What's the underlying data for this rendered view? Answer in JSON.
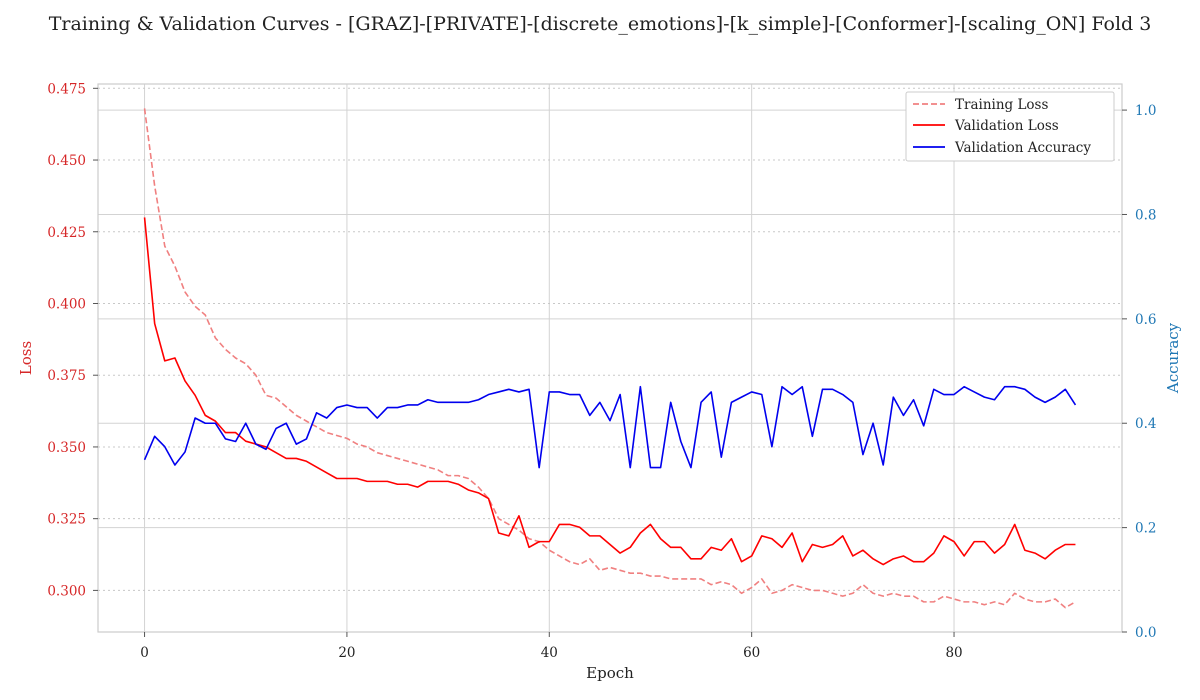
{
  "chart_data": {
    "type": "line",
    "title": "Training & Validation Curves - [GRAZ]-[PRIVATE]-[discrete_emotions]-[k_simple]-[Conformer]-[scaling_ON] Fold 3",
    "xlabel": "Epoch",
    "ylabel": "Loss",
    "y2label": "Accuracy",
    "xlim": [
      -4.6,
      96.6
    ],
    "ylim": [
      0.2855,
      0.4765
    ],
    "y2lim": [
      0,
      1.05
    ],
    "xticks": [
      0,
      20,
      40,
      60,
      80
    ],
    "yticks": [
      0.3,
      0.325,
      0.35,
      0.375,
      0.4,
      0.425,
      0.45,
      0.475
    ],
    "y2ticks": [
      0.0,
      0.2,
      0.4,
      0.6,
      0.8,
      1.0
    ],
    "grid": true,
    "legend_position": "top-right",
    "colors": {
      "training_loss": "#f08080",
      "validation_loss": "#ff0000",
      "validation_accuracy": "#0000ee",
      "left_axis": "#d62728",
      "right_axis": "#1f77b4"
    },
    "series": [
      {
        "name": "Training Loss",
        "axis": "left",
        "style": "dashed",
        "color": "#f08080",
        "values": [
          0.468,
          0.441,
          0.42,
          0.413,
          0.404,
          0.399,
          0.396,
          0.388,
          0.384,
          0.381,
          0.379,
          0.375,
          0.368,
          0.367,
          0.364,
          0.361,
          0.359,
          0.357,
          0.355,
          0.354,
          0.353,
          0.351,
          0.35,
          0.348,
          0.347,
          0.346,
          0.345,
          0.344,
          0.343,
          0.342,
          0.34,
          0.34,
          0.339,
          0.336,
          0.332,
          0.325,
          0.323,
          0.321,
          0.318,
          0.317,
          0.314,
          0.312,
          0.31,
          0.309,
          0.311,
          0.307,
          0.308,
          0.307,
          0.306,
          0.306,
          0.305,
          0.305,
          0.304,
          0.304,
          0.304,
          0.304,
          0.302,
          0.303,
          0.302,
          0.299,
          0.301,
          0.304,
          0.299,
          0.3,
          0.302,
          0.301,
          0.3,
          0.3,
          0.299,
          0.298,
          0.299,
          0.302,
          0.299,
          0.298,
          0.299,
          0.298,
          0.298,
          0.296,
          0.296,
          0.298,
          0.297,
          0.296,
          0.296,
          0.295,
          0.296,
          0.295,
          0.299,
          0.297,
          0.296,
          0.296,
          0.297,
          0.294,
          0.296
        ]
      },
      {
        "name": "Validation Loss",
        "axis": "left",
        "style": "solid",
        "color": "#ff0000",
        "values": [
          0.43,
          0.393,
          0.38,
          0.381,
          0.373,
          0.368,
          0.361,
          0.359,
          0.355,
          0.355,
          0.352,
          0.351,
          0.35,
          0.348,
          0.346,
          0.346,
          0.345,
          0.343,
          0.341,
          0.339,
          0.339,
          0.339,
          0.338,
          0.338,
          0.338,
          0.337,
          0.337,
          0.336,
          0.338,
          0.338,
          0.338,
          0.337,
          0.335,
          0.334,
          0.332,
          0.32,
          0.319,
          0.326,
          0.315,
          0.317,
          0.317,
          0.323,
          0.323,
          0.322,
          0.319,
          0.319,
          0.316,
          0.313,
          0.315,
          0.32,
          0.323,
          0.318,
          0.315,
          0.315,
          0.311,
          0.311,
          0.315,
          0.314,
          0.318,
          0.31,
          0.312,
          0.319,
          0.318,
          0.315,
          0.32,
          0.31,
          0.316,
          0.315,
          0.316,
          0.319,
          0.312,
          0.314,
          0.311,
          0.309,
          0.311,
          0.312,
          0.31,
          0.31,
          0.313,
          0.319,
          0.317,
          0.312,
          0.317,
          0.317,
          0.313,
          0.316,
          0.323,
          0.314,
          0.313,
          0.311,
          0.314,
          0.316,
          0.316
        ]
      },
      {
        "name": "Validation Accuracy",
        "axis": "right",
        "style": "solid",
        "color": "#0000ee",
        "values": [
          0.33,
          0.375,
          0.355,
          0.32,
          0.345,
          0.41,
          0.4,
          0.4,
          0.37,
          0.365,
          0.4,
          0.36,
          0.35,
          0.39,
          0.4,
          0.36,
          0.37,
          0.42,
          0.41,
          0.43,
          0.435,
          0.43,
          0.43,
          0.41,
          0.43,
          0.43,
          0.435,
          0.435,
          0.445,
          0.44,
          0.44,
          0.44,
          0.44,
          0.445,
          0.455,
          0.46,
          0.465,
          0.46,
          0.465,
          0.315,
          0.46,
          0.46,
          0.455,
          0.455,
          0.415,
          0.44,
          0.405,
          0.455,
          0.315,
          0.47,
          0.315,
          0.315,
          0.44,
          0.365,
          0.315,
          0.44,
          0.46,
          0.335,
          0.44,
          0.45,
          0.46,
          0.455,
          0.355,
          0.47,
          0.455,
          0.47,
          0.375,
          0.465,
          0.465,
          0.455,
          0.44,
          0.34,
          0.4,
          0.32,
          0.45,
          0.415,
          0.445,
          0.395,
          0.465,
          0.455,
          0.455,
          0.47,
          0.46,
          0.45,
          0.445,
          0.47,
          0.47,
          0.465,
          0.45,
          0.44,
          0.45,
          0.465,
          0.435
        ]
      }
    ]
  }
}
